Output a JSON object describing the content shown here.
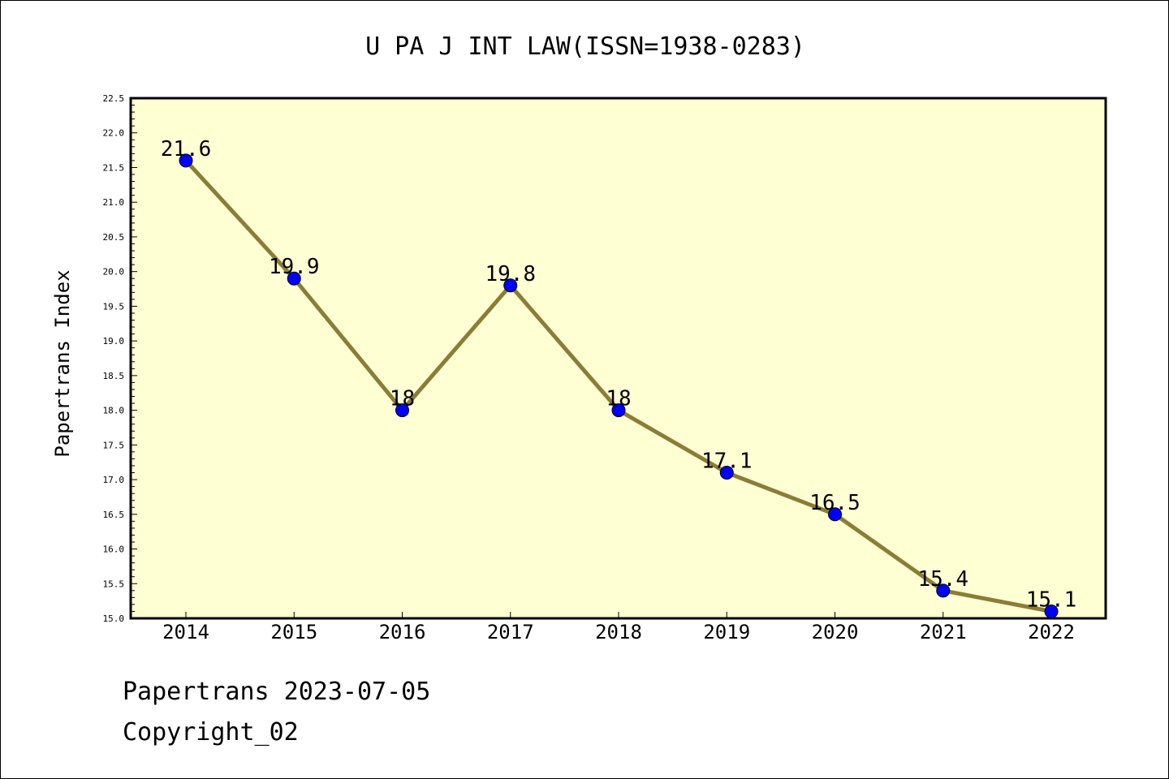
{
  "chart_data": {
    "type": "line",
    "title": "U PA J INT LAW(ISSN=1938-0283)",
    "ylabel": "Papertrans Index",
    "xlabel": "",
    "categories": [
      "2014",
      "2015",
      "2016",
      "2017",
      "2018",
      "2019",
      "2020",
      "2021",
      "2022"
    ],
    "values": [
      21.6,
      19.9,
      18,
      19.8,
      18,
      17.1,
      16.5,
      15.4,
      15.1
    ],
    "data_labels": [
      "21.6",
      "19.9",
      "18",
      "19.8",
      "18",
      "17.1",
      "16.5",
      "15.4",
      "15.1"
    ],
    "ylim": [
      15.0,
      22.5
    ],
    "yticks": [
      "15.0",
      "15.5",
      "16.0",
      "16.5",
      "17.0",
      "17.5",
      "18.0",
      "18.5",
      "19.0",
      "19.5",
      "20.0",
      "20.5",
      "21.0",
      "21.5",
      "22.0",
      "22.5"
    ],
    "grid": false,
    "legend": "none",
    "colors": {
      "plot_background": "#ffffd4",
      "line": "#8b7d35",
      "marker": "#0000ff",
      "marker_edge": "#000000"
    }
  },
  "footer": {
    "date_text": "Papertrans 2023-07-05",
    "copyright_text": "Copyright_02"
  }
}
